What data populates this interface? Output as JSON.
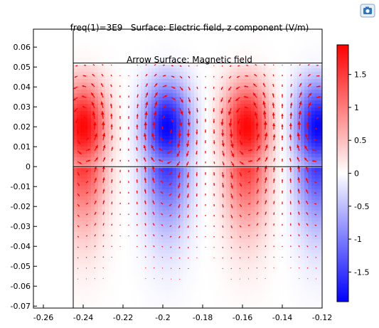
{
  "title": {
    "line1": "freq(1)=3E9   Surface: Electric field, z component (V/m)",
    "line2": "Arrow Surface: Magnetic field"
  },
  "toolbar": {
    "icon": "screenshot-camera-icon"
  },
  "chart_data": {
    "type": "heatmap",
    "title": "freq(1)=3E9   Surface: Electric field, z component (V/m) / Arrow Surface: Magnetic field",
    "xlabel": "",
    "ylabel": "",
    "xlim": [
      -0.265,
      -0.12
    ],
    "ylim": [
      -0.071,
      0.069
    ],
    "xticks": [
      "-0.26",
      "-0.24",
      "-0.22",
      "-0.2",
      "-0.18",
      "-0.16",
      "-0.14",
      "-0.12"
    ],
    "xtick_values": [
      -0.26,
      -0.24,
      -0.22,
      -0.2,
      -0.18,
      -0.16,
      -0.14,
      -0.12
    ],
    "yticks": [
      "0.06",
      "0.05",
      "0.04",
      "0.03",
      "0.02",
      "0.01",
      "0",
      "-0.01",
      "-0.02",
      "-0.03",
      "-0.04",
      "-0.05",
      "-0.06",
      "-0.07"
    ],
    "ytick_values": [
      0.06,
      0.05,
      0.04,
      0.03,
      0.02,
      0.01,
      0,
      -0.01,
      -0.02,
      -0.03,
      -0.04,
      -0.05,
      -0.06,
      -0.07
    ],
    "domain_x": [
      -0.245,
      -0.12
    ],
    "boundary_lines_y": [
      0.052,
      0
    ],
    "colorbar": {
      "min": -1.95,
      "max": 1.95,
      "ticks": [
        "1.5",
        "1",
        "0.5",
        "0",
        "-0.5",
        "-1",
        "-1.5"
      ],
      "tick_values": [
        1.5,
        1,
        0.5,
        0,
        -0.5,
        -1,
        -1.5
      ],
      "colormap": [
        "#0000ff",
        "#ffffff",
        "#ff0000"
      ]
    },
    "field_lobes": [
      {
        "x": -0.24,
        "y": 0.02,
        "sign": "positive",
        "peak": 1.9
      },
      {
        "x": -0.198,
        "y": 0.02,
        "sign": "negative",
        "peak": -1.9
      },
      {
        "x": -0.158,
        "y": 0.02,
        "sign": "positive",
        "peak": 1.9
      },
      {
        "x": -0.122,
        "y": 0.02,
        "sign": "negative",
        "peak": -1.9
      }
    ],
    "arrow_color": "#ff0000"
  }
}
